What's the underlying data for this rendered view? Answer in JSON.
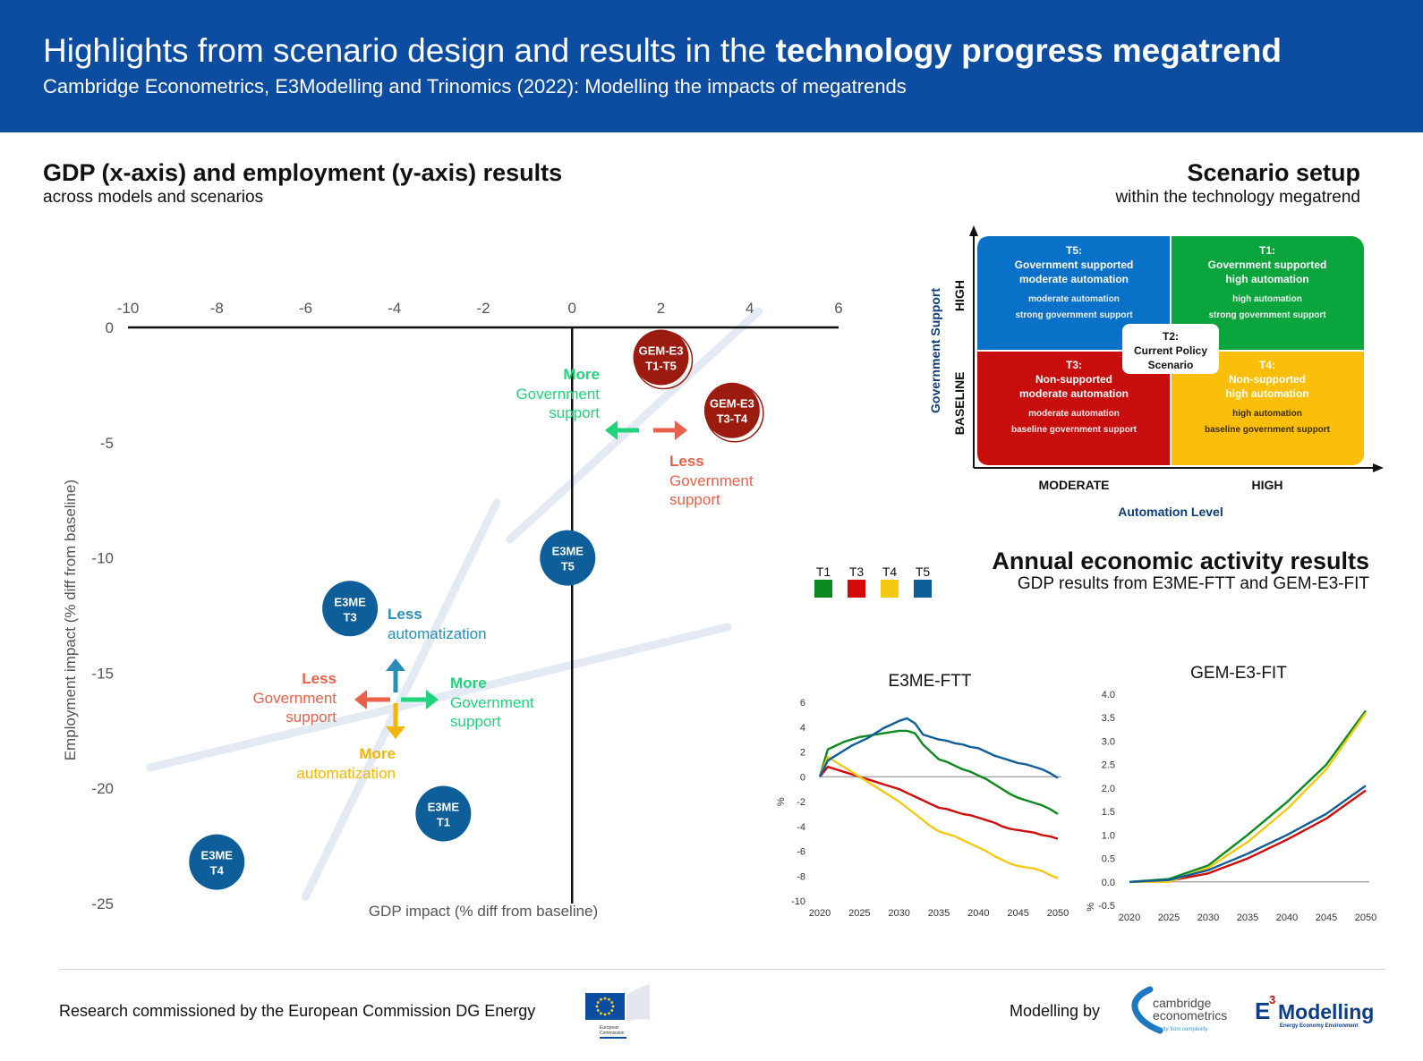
{
  "header": {
    "title_plain": "Highlights from scenario design and results in the ",
    "title_bold": "technology progress megatrend",
    "subtitle": "Cambridge Econometrics, E3Modelling and Trinomics (2022): Modelling the impacts of megatrends"
  },
  "left_section": {
    "title": "GDP (x-axis) and employment (y-axis) results",
    "subtitle": "across models and scenarios"
  },
  "setup_section": {
    "title": "Scenario setup",
    "subtitle": "within the technology megatrend"
  },
  "annual_section": {
    "title": "Annual economic activity results",
    "subtitle": "GDP results from E3ME-FTT and GEM-E3-FIT"
  },
  "colors": {
    "banner": "#0c4da2",
    "e3me_bubble": "#0d5e99",
    "gem_bubble": "#9b1b0e",
    "more_gov": "#1fd47a",
    "less_gov": "#e9614a",
    "less_auto": "#2a8fb8",
    "more_auto": "#f2b705",
    "T1": "#0a8a1e",
    "T3": "#d10a0a",
    "T4": "#f5c814",
    "T5": "#0d5e99",
    "quad_T5": "#0a71c9",
    "quad_T1": "#0aa53c",
    "quad_T3": "#c80d0d",
    "quad_T4": "#fbbf0a"
  },
  "chart_data": [
    {
      "type": "scatter",
      "xlabel": "GDP impact (% diff from baseline)",
      "ylabel": "Employment impact (% diff from baseline)",
      "xlim": [
        -10,
        6
      ],
      "ylim": [
        -25,
        0
      ],
      "x_ticks": [
        "-10",
        "-8",
        "-6",
        "-4",
        "-2",
        "0",
        "2",
        "4",
        "6"
      ],
      "y_ticks": [
        "0",
        "-5",
        "-10",
        "-15",
        "-20",
        "-25"
      ],
      "points": [
        {
          "label1": "GEM-E3",
          "label2": "T1-T5",
          "x": 2.0,
          "y": -1.3,
          "model": "gem"
        },
        {
          "label1": "GEM-E3",
          "label2": "T3-T4",
          "x": 3.6,
          "y": -3.6,
          "model": "gem"
        },
        {
          "label1": "E3ME",
          "label2": "T5",
          "x": -0.1,
          "y": -10.0,
          "model": "e3me"
        },
        {
          "label1": "E3ME",
          "label2": "T3",
          "x": -5.0,
          "y": -12.2,
          "model": "e3me"
        },
        {
          "label1": "E3ME",
          "label2": "T1",
          "x": -2.9,
          "y": -21.1,
          "model": "e3me"
        },
        {
          "label1": "E3ME",
          "label2": "T4",
          "x": -8.0,
          "y": -23.2,
          "model": "e3me"
        }
      ],
      "annotations": {
        "top_more": {
          "bold": "More",
          "line1": "Government",
          "line2": "support"
        },
        "top_less": {
          "bold": "Less",
          "line1": "Government",
          "line2": "support"
        },
        "left_less_auto": {
          "bold": "Less",
          "line1": "automatization"
        },
        "left_less_gov": {
          "bold": "Less",
          "line1": "Government",
          "line2": "support"
        },
        "left_more_gov": {
          "bold": "More",
          "line1": "Government",
          "line2": "support"
        },
        "left_more_auto": {
          "bold": "More",
          "line1": "automatization"
        }
      }
    },
    {
      "type": "table",
      "x_label": "Automation Level",
      "y_label": "Government Support",
      "x_categories": [
        "MODERATE",
        "HIGH"
      ],
      "y_categories": [
        "BASELINE",
        "HIGH"
      ],
      "quadrants": {
        "T5": {
          "title": "T5:",
          "l1": "Government supported",
          "l2": "moderate automation",
          "s1": "moderate automation",
          "s2": "strong government support"
        },
        "T1": {
          "title": "T1:",
          "l1": "Government supported",
          "l2": "high automation",
          "s1": "high automation",
          "s2": "strong government support"
        },
        "T3": {
          "title": "T3:",
          "l1": "Non-supported",
          "l2": "moderate automation",
          "s1": "moderate automation",
          "s2": "baseline government support"
        },
        "T4": {
          "title": "T4:",
          "l1": "Non-supported",
          "l2": "high automation",
          "s1": "high automation",
          "s2": "baseline government support"
        },
        "T2": {
          "title": "T2:",
          "l1": "Current Policy",
          "l2": "Scenario"
        }
      }
    },
    {
      "type": "line",
      "title": "E3ME-FTT",
      "ylabel": "%",
      "x": [
        2020,
        2021,
        2022,
        2023,
        2024,
        2025,
        2026,
        2027,
        2028,
        2029,
        2030,
        2031,
        2032,
        2033,
        2034,
        2035,
        2036,
        2037,
        2038,
        2039,
        2040,
        2041,
        2042,
        2043,
        2044,
        2045,
        2046,
        2047,
        2048,
        2049,
        2050
      ],
      "ylim": [
        -10,
        6
      ],
      "y_ticks": [
        6,
        4,
        2,
        0,
        -2,
        -4,
        -6,
        -8,
        -10
      ],
      "x_ticks": [
        2020,
        2025,
        2030,
        2035,
        2040,
        2045,
        2050
      ],
      "series": [
        {
          "name": "T1",
          "values": [
            0,
            2.2,
            2.5,
            2.8,
            3.0,
            3.2,
            3.3,
            3.4,
            3.5,
            3.6,
            3.7,
            3.7,
            3.5,
            2.6,
            2.0,
            1.4,
            1.2,
            0.9,
            0.6,
            0.4,
            0.1,
            -0.2,
            -0.6,
            -1.0,
            -1.4,
            -1.7,
            -1.9,
            -2.1,
            -2.3,
            -2.6,
            -3.0
          ]
        },
        {
          "name": "T3",
          "values": [
            0,
            0.8,
            0.6,
            0.4,
            0.2,
            0.0,
            -0.2,
            -0.4,
            -0.6,
            -0.8,
            -1.0,
            -1.3,
            -1.6,
            -1.9,
            -2.2,
            -2.5,
            -2.6,
            -2.8,
            -3.0,
            -3.1,
            -3.3,
            -3.5,
            -3.7,
            -4.0,
            -4.2,
            -4.3,
            -4.4,
            -4.5,
            -4.7,
            -4.8,
            -5.0
          ]
        },
        {
          "name": "T4",
          "values": [
            0,
            1.6,
            1.2,
            0.8,
            0.4,
            0.0,
            -0.4,
            -0.8,
            -1.2,
            -1.6,
            -2.0,
            -2.5,
            -3.0,
            -3.5,
            -4.0,
            -4.4,
            -4.6,
            -4.8,
            -5.1,
            -5.4,
            -5.7,
            -6.0,
            -6.4,
            -6.7,
            -7.0,
            -7.2,
            -7.3,
            -7.4,
            -7.6,
            -7.9,
            -8.2
          ]
        },
        {
          "name": "T5",
          "values": [
            0,
            1.3,
            1.7,
            2.1,
            2.5,
            2.8,
            3.1,
            3.5,
            3.9,
            4.2,
            4.5,
            4.7,
            4.3,
            3.4,
            3.2,
            3.0,
            2.9,
            2.7,
            2.6,
            2.4,
            2.3,
            2.0,
            1.7,
            1.5,
            1.3,
            1.1,
            1.0,
            0.8,
            0.6,
            0.3,
            -0.1
          ]
        }
      ]
    },
    {
      "type": "line",
      "title": "GEM-E3-FIT",
      "ylabel": "%",
      "x": [
        2020,
        2025,
        2030,
        2035,
        2040,
        2045,
        2050
      ],
      "ylim": [
        -0.5,
        4.0
      ],
      "y_ticks": [
        "4.0",
        "3.5",
        "3.0",
        "2.5",
        "2.0",
        "1.5",
        "1.0",
        "0.5",
        "0.0",
        "-0.5"
      ],
      "x_ticks": [
        2020,
        2025,
        2030,
        2035,
        2040,
        2045,
        2050
      ],
      "series": [
        {
          "name": "T1",
          "values": [
            0,
            0.06,
            0.35,
            1.0,
            1.7,
            2.5,
            3.65
          ]
        },
        {
          "name": "T3",
          "values": [
            0,
            0.02,
            0.18,
            0.5,
            0.9,
            1.35,
            1.95
          ]
        },
        {
          "name": "T4",
          "values": [
            0,
            0.0,
            0.3,
            0.85,
            1.55,
            2.4,
            3.6
          ]
        },
        {
          "name": "T5",
          "values": [
            0,
            0.04,
            0.25,
            0.6,
            1.0,
            1.45,
            2.05
          ]
        }
      ]
    }
  ],
  "legend": [
    "T1",
    "T3",
    "T4",
    "T5"
  ],
  "footer": {
    "commissioned": "Research commissioned by the European Commission DG Energy",
    "modelling_by": "Modelling by",
    "ec_logo_text1": "European",
    "ec_logo_text2": "Commission",
    "ce_logo_line1": "cambridge",
    "ce_logo_line2": "econometrics",
    "ce_logo_tag": "clarity from complexity",
    "e3m_logo_main": "Modelling",
    "e3m_logo_sup": "3",
    "e3m_logo_tag": "Energy Economy Environment"
  }
}
